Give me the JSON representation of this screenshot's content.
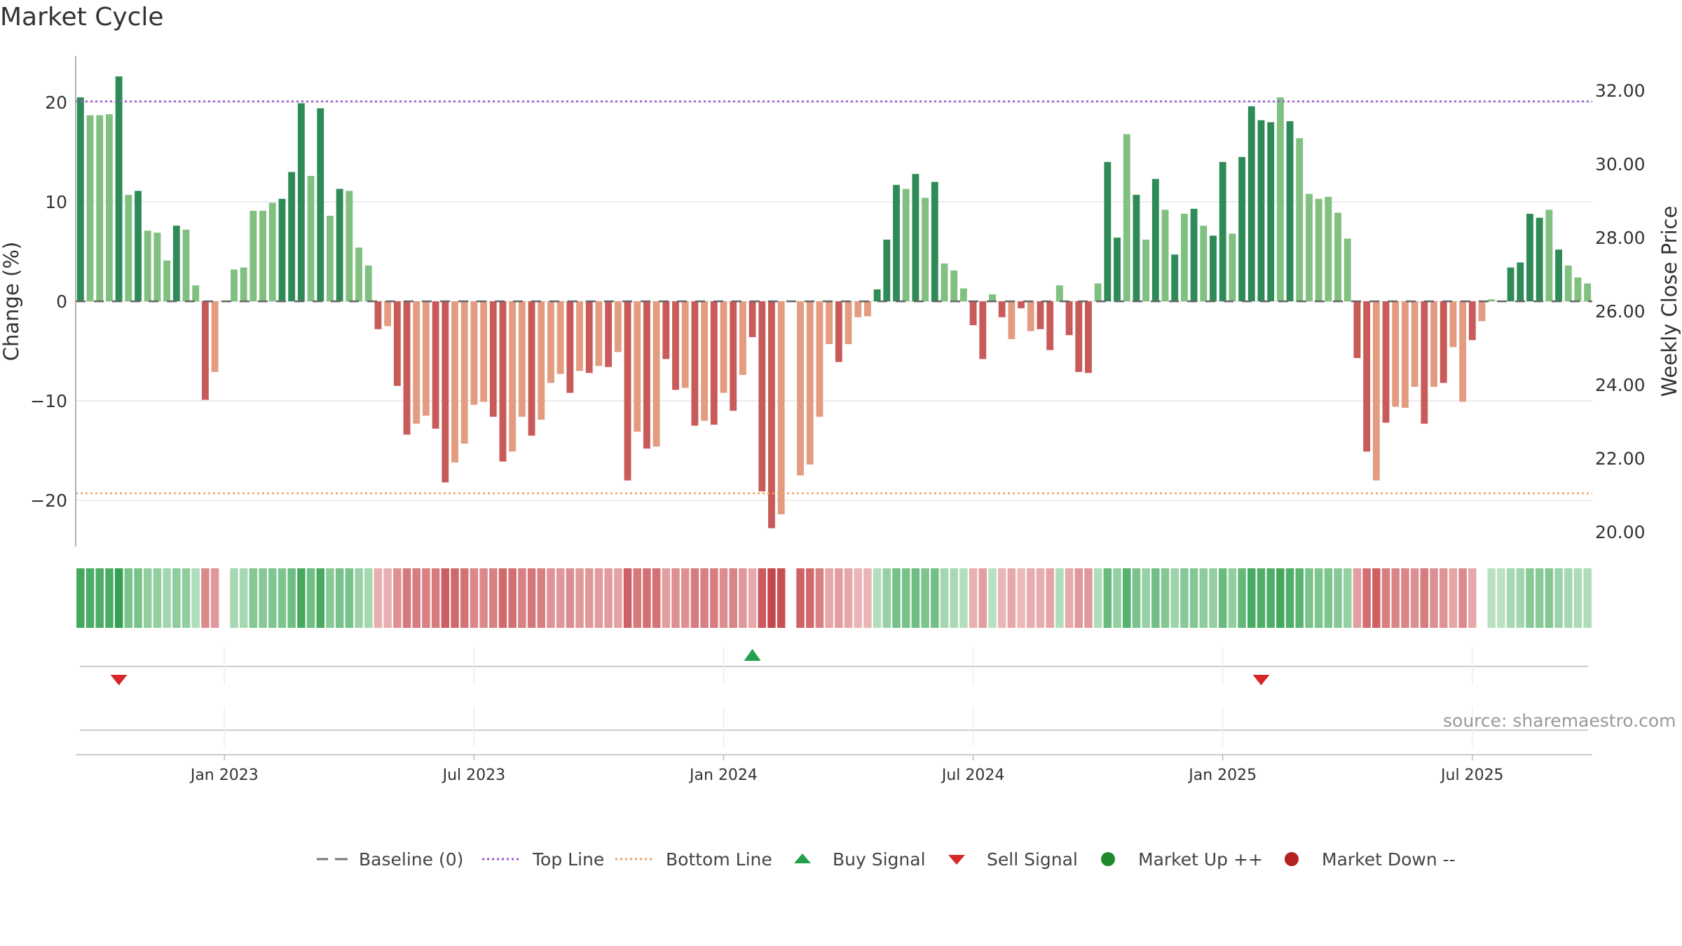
{
  "title": "Market Cycle",
  "source_text": "source: sharemaestro.com",
  "colors": {
    "up_strong": "#2e8b57",
    "up_weak": "#80c080",
    "down_strong": "#c95a5a",
    "down_weak": "#e39c80",
    "top_line": "#9b59d0",
    "bottom_line": "#f0a060",
    "buy": "#22a04b",
    "sell": "#d62728",
    "market_up": "#1e8a2a",
    "market_down": "#b22222",
    "baseline": "#666666"
  },
  "legend": [
    {
      "label": "Baseline (0)",
      "icon": "dash-line"
    },
    {
      "label": "Top Line",
      "icon": "dotted-line-purple"
    },
    {
      "label": "Bottom Line",
      "icon": "dotted-line-orange"
    },
    {
      "label": "Buy Signal",
      "icon": "triangle-up-green"
    },
    {
      "label": "Sell Signal",
      "icon": "triangle-down-red"
    },
    {
      "label": "Market Up ++",
      "icon": "circle-green"
    },
    {
      "label": "Market Down --",
      "icon": "circle-red"
    }
  ],
  "chart_data": {
    "type": "bar",
    "title": "Market Cycle",
    "ylabel": "Change (%)",
    "y2label": "Weekly Close Price",
    "ylim": [
      -24.5,
      24.5
    ],
    "yticks": [
      20,
      10,
      0,
      -10,
      -20
    ],
    "yticklabels": [
      "20",
      "10",
      "0",
      "−10",
      "−20"
    ],
    "y2ticks": [
      32,
      30,
      28,
      26,
      24,
      22,
      20
    ],
    "y2ticklabels": [
      "32.00",
      "30.00",
      "28.00",
      "26.00",
      "24.00",
      "22.00",
      "20.00"
    ],
    "top_line": 20.1,
    "bottom_line": -19.3,
    "grid": true,
    "xticks": [
      15,
      41,
      67,
      93,
      119,
      145
    ],
    "xticklabels": [
      "Jan 2023",
      "Jul 2023",
      "Jan 2024",
      "Jul 2024",
      "Jan 2025",
      "Jul 2025"
    ],
    "start_week": "2022-09-26",
    "values": [
      20.5,
      18.7,
      18.7,
      18.8,
      22.6,
      10.7,
      11.1,
      7.1,
      6.9,
      4.1,
      7.6,
      7.2,
      1.6,
      -9.9,
      -7.1,
      0,
      3.2,
      3.4,
      9.1,
      9.1,
      9.9,
      10.3,
      13.0,
      19.9,
      12.6,
      19.4,
      8.6,
      11.3,
      11.1,
      5.4,
      3.6,
      -2.8,
      -2.5,
      -8.5,
      -13.4,
      -12.3,
      -11.5,
      -12.8,
      -18.2,
      -16.2,
      -14.3,
      -10.4,
      -10.1,
      -11.6,
      -16.1,
      -15.1,
      -11.6,
      -13.5,
      -11.9,
      -8.2,
      -7.3,
      -9.2,
      -7.0,
      -7.2,
      -6.5,
      -6.6,
      -5.1,
      -18.0,
      -13.1,
      -14.8,
      -14.6,
      -5.8,
      -8.9,
      -8.7,
      -12.5,
      -12.0,
      -12.4,
      -9.2,
      -11.0,
      -7.4,
      -3.6,
      -19.1,
      -22.8,
      -21.4,
      0,
      -17.5,
      -16.4,
      -11.6,
      -4.3,
      -6.1,
      -4.3,
      -1.6,
      -1.5,
      1.2,
      6.2,
      11.7,
      11.3,
      12.8,
      10.4,
      12.0,
      3.8,
      3.1,
      1.3,
      -2.4,
      -5.8,
      0.7,
      -1.6,
      -3.8,
      -0.7,
      -3.0,
      -2.8,
      -4.9,
      1.6,
      -3.4,
      -7.1,
      -7.2,
      1.8,
      14.0,
      6.4,
      16.8,
      10.7,
      6.2,
      12.3,
      9.2,
      4.7,
      8.8,
      9.3,
      7.6,
      6.6,
      14.0,
      6.8,
      14.5,
      19.6,
      18.2,
      18.0,
      20.5,
      18.1,
      16.4,
      10.8,
      10.3,
      10.5,
      8.9,
      6.3,
      -5.7,
      -15.1,
      -18.0,
      -12.2,
      -10.6,
      -10.7,
      -8.6,
      -12.3,
      -8.6,
      -8.2,
      -4.6,
      -10.1,
      -3.9,
      -2.0,
      0.2,
      0,
      3.4,
      3.9,
      8.8,
      8.4,
      9.2,
      5.2,
      3.6,
      2.4,
      1.8
    ],
    "strong_weeks": [
      0,
      4,
      6,
      10,
      13,
      21,
      22,
      23,
      25,
      27,
      31,
      33,
      34,
      37,
      38,
      43,
      44,
      47,
      51,
      53,
      55,
      57,
      59,
      61,
      62,
      64,
      66,
      68,
      70,
      71,
      72,
      79,
      83,
      84,
      85,
      87,
      89,
      93,
      94,
      96,
      98,
      100,
      101,
      103,
      104,
      105,
      107,
      108,
      110,
      112,
      114,
      116,
      118,
      119,
      121,
      122,
      123,
      124,
      126,
      133,
      134,
      136,
      140,
      142,
      145,
      149,
      150,
      151,
      152,
      154
    ],
    "flat_weeks": [
      15,
      74,
      146
    ],
    "buy_signals": [
      70
    ],
    "sell_signals": [
      4,
      123
    ]
  }
}
